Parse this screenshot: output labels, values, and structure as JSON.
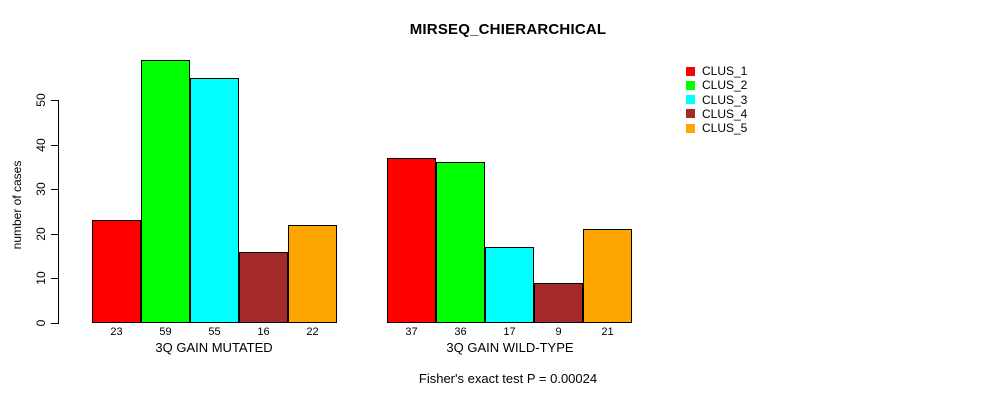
{
  "chart_data": {
    "type": "bar",
    "title": "MIRSEQ_CHIERARCHICAL",
    "ylabel": "number of cases",
    "xlabel": "",
    "ylim": [
      0,
      50
    ],
    "yticks": [
      0,
      10,
      20,
      30,
      40,
      50
    ],
    "grid": false,
    "legend_position": "right-outside",
    "bar_borders": "#000000",
    "groups": [
      {
        "label": "3Q GAIN MUTATED",
        "values": [
          23,
          59,
          55,
          16,
          22
        ]
      },
      {
        "label": "3Q GAIN WILD-TYPE",
        "values": [
          37,
          36,
          17,
          9,
          21
        ]
      }
    ],
    "series": [
      {
        "name": "CLUS_1",
        "color": "#FF0000"
      },
      {
        "name": "CLUS_2",
        "color": "#00FF00"
      },
      {
        "name": "CLUS_3",
        "color": "#00FFFF"
      },
      {
        "name": "CLUS_4",
        "color": "#A52A2A"
      },
      {
        "name": "CLUS_5",
        "color": "#FFA500"
      }
    ],
    "annotation": "Fisher's exact test P = 0.00024"
  }
}
